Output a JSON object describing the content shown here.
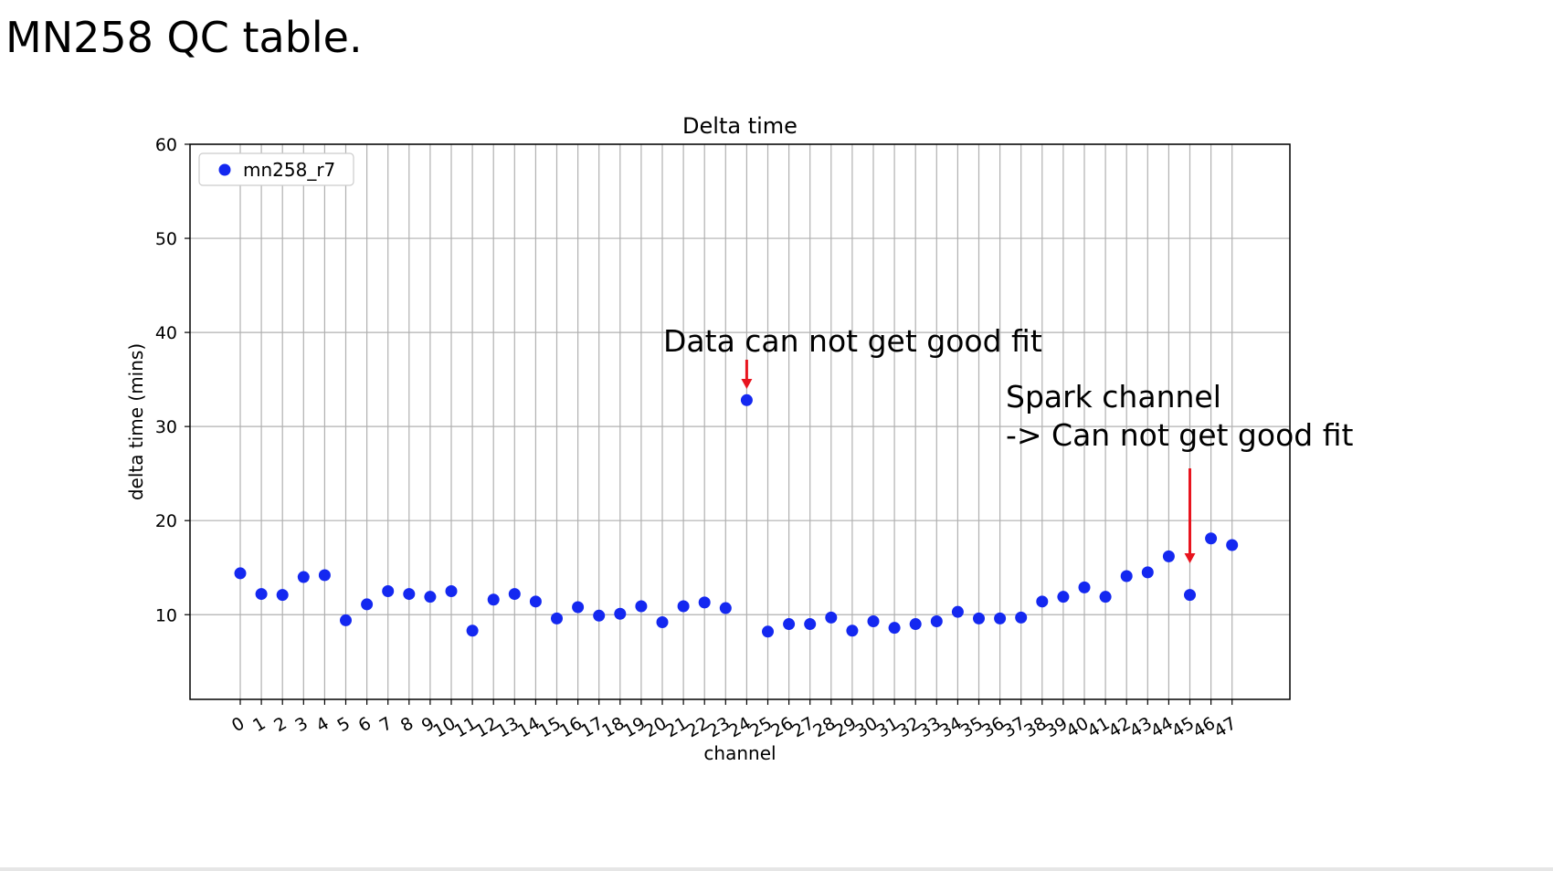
{
  "slide": {
    "title": "MN258 QC table."
  },
  "annotations": [
    {
      "text": "Data can not get good fit"
    },
    {
      "text": "Spark channel"
    },
    {
      "text": "-> Can not get good fit"
    }
  ],
  "colors": {
    "marker": "#1428f0",
    "arrow": "#e8141e",
    "grid": "#b0b0b0"
  },
  "chart_data": {
    "type": "scatter",
    "title": "Delta time",
    "xlabel": "channel",
    "ylabel": "delta time (mins)",
    "ylim": [
      1,
      60
    ],
    "yticks": [
      10,
      20,
      30,
      40,
      50,
      60
    ],
    "xticks": [
      0,
      1,
      2,
      3,
      4,
      5,
      6,
      7,
      8,
      9,
      10,
      11,
      12,
      13,
      14,
      15,
      16,
      17,
      18,
      19,
      20,
      21,
      22,
      23,
      24,
      25,
      26,
      27,
      28,
      29,
      30,
      31,
      32,
      33,
      34,
      35,
      36,
      37,
      38,
      39,
      40,
      41,
      42,
      43,
      44,
      45,
      46,
      47
    ],
    "grid": true,
    "legend_position": "top-left",
    "series": [
      {
        "name": "mn258_r7",
        "x": [
          0,
          1,
          2,
          3,
          4,
          5,
          6,
          7,
          8,
          9,
          10,
          11,
          12,
          13,
          14,
          15,
          16,
          17,
          18,
          19,
          20,
          21,
          22,
          23,
          24,
          25,
          26,
          27,
          28,
          29,
          30,
          31,
          32,
          33,
          34,
          35,
          36,
          37,
          38,
          39,
          40,
          41,
          42,
          43,
          44,
          45,
          46,
          47
        ],
        "y": [
          14.4,
          12.2,
          12.1,
          14.0,
          14.2,
          9.4,
          11.1,
          12.5,
          12.2,
          11.9,
          12.5,
          8.3,
          11.6,
          12.2,
          11.4,
          9.6,
          10.8,
          9.9,
          10.1,
          10.9,
          9.2,
          10.9,
          11.3,
          10.7,
          32.8,
          8.2,
          9.0,
          9.0,
          9.7,
          8.3,
          9.3,
          8.6,
          9.0,
          9.3,
          10.3,
          9.6,
          9.6,
          9.7,
          11.4,
          11.9,
          12.9,
          11.9,
          14.1,
          14.5,
          16.2,
          12.1,
          18.1,
          17.4
        ]
      }
    ]
  }
}
